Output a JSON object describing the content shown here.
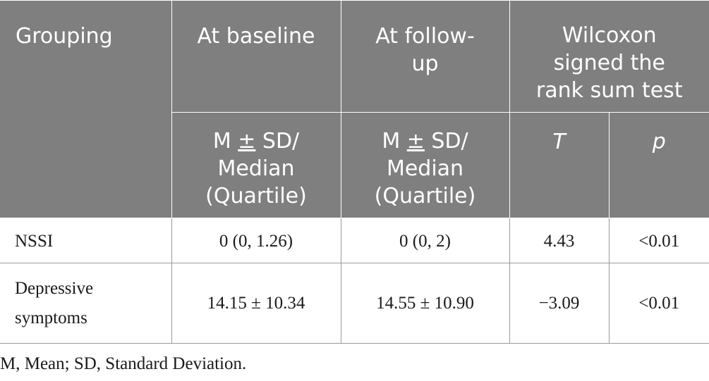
{
  "table": {
    "headers": {
      "grouping": "Grouping",
      "baseline": "At baseline",
      "followup_line1": "At follow-",
      "followup_line2": "up",
      "wilcoxon_line1": "Wilcoxon",
      "wilcoxon_line2": "signed the",
      "wilcoxon_line3": "rank sum test",
      "baseline_sub_line1_a": "M ",
      "baseline_sub_line1_pm": "±",
      "baseline_sub_line1_b": " SD/",
      "baseline_sub_line2": "Median",
      "baseline_sub_line3": "(Quartile)",
      "followup_sub_line1_a": "M ",
      "followup_sub_line1_pm": "±",
      "followup_sub_line1_b": " SD/",
      "followup_sub_line2": "Median",
      "followup_sub_line3": "(Quartile)",
      "t": "T",
      "p": "p"
    },
    "rows": [
      {
        "label_line1": "NSSI",
        "label_line2": "",
        "baseline": "0 (0, 1.26)",
        "followup": "0 (0, 2)",
        "t": "4.43",
        "p": "<0.01"
      },
      {
        "label_line1": "Depressive",
        "label_line2": "symptoms",
        "baseline": "14.15 ± 10.34",
        "followup": "14.55 ± 10.90",
        "t": "−3.09",
        "p": "<0.01"
      }
    ]
  },
  "footnote": "M, Mean; SD, Standard Deviation.",
  "colors": {
    "header_bg": "#7f7f7f",
    "header_text": "#ffffff",
    "body_text": "#1a1a1a",
    "grid": "#9a9a9a"
  }
}
